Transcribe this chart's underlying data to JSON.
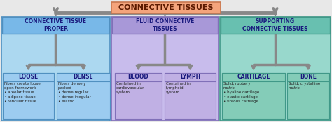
{
  "title": "CONNECTIVE TISSUES",
  "title_bg": "#F4A47C",
  "title_border": "#C87850",
  "title_text_color": "#5C1A00",
  "level1": [
    {
      "label": "CONNECTIVE TISSUE\nPROPER",
      "bg": "#78B8E8",
      "border": "#5090C0",
      "text_color": "#1A1A7E"
    },
    {
      "label": "FLUID CONNECTIVE\nTISSUES",
      "bg": "#A898D8",
      "border": "#8070B8",
      "text_color": "#1A1A7E"
    },
    {
      "label": "SUPPORTING\nCONNECTIVE TISSUES",
      "bg": "#68C0B0",
      "border": "#409888",
      "text_color": "#1A1A7E"
    }
  ],
  "level1_panel": [
    {
      "bg": "#ACD8F0",
      "border": "#5090C0"
    },
    {
      "bg": "#C8BCEC",
      "border": "#8070B8"
    },
    {
      "bg": "#98D8CC",
      "border": "#409888"
    }
  ],
  "level2": [
    {
      "label": "LOOSE",
      "bg": "#9CCCF0",
      "border": "#5090C0",
      "text_color": "#1A1A7E",
      "parent": 0
    },
    {
      "label": "DENSE",
      "bg": "#9CCCF0",
      "border": "#5090C0",
      "text_color": "#1A1A7E",
      "parent": 0
    },
    {
      "label": "BLOOD",
      "bg": "#C0B0E4",
      "border": "#8070B8",
      "text_color": "#1A1A7E",
      "parent": 1
    },
    {
      "label": "LYMPH",
      "bg": "#C0B0E4",
      "border": "#8070B8",
      "text_color": "#1A1A7E",
      "parent": 1
    },
    {
      "label": "CARTILAGE",
      "bg": "#84CCB8",
      "border": "#409888",
      "text_color": "#1A1A7E",
      "parent": 2
    },
    {
      "label": "BONE",
      "bg": "#84CCB8",
      "border": "#409888",
      "text_color": "#1A1A7E",
      "parent": 2
    }
  ],
  "level2_text": [
    "Fibers create loose,\nopen framework\n• areolar tissue\n• adipose tissue\n• reticular tissue",
    "Fibers densely\npacked\n• dense regular\n• dense irregular\n• elastic",
    "Contained in\ncardiovascular\nsystem",
    "Contained in\nlymphoid\nsystem",
    "Solid, rubbery\nmatrix\n• hyaline cartilage\n• elastic cartilage\n• fibrous cartilage",
    "Solid, crystalline\nmatrix"
  ],
  "arrow_color": "#888888",
  "bg_color": "#E8E8E8",
  "text_color_body": "#222222",
  "text_color_dark": "#1A1A7E"
}
